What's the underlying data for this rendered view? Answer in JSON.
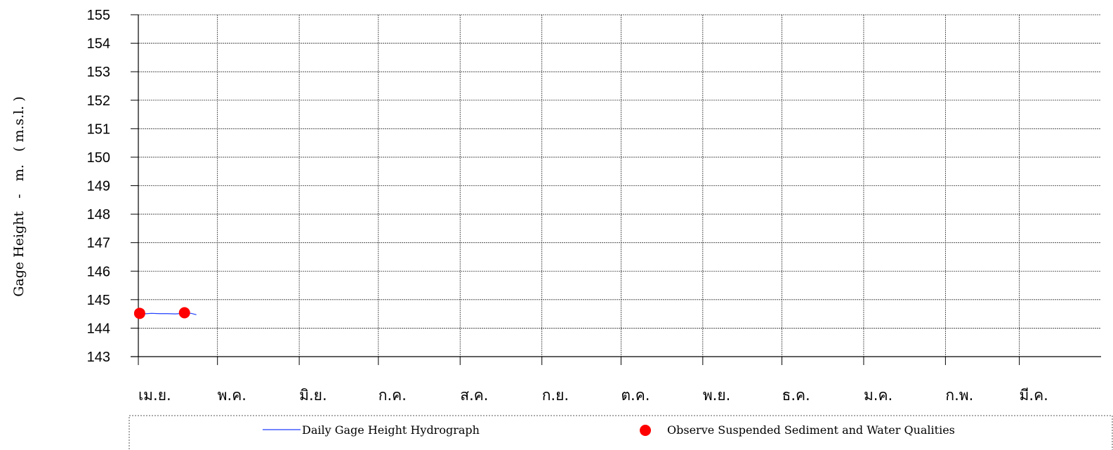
{
  "chart_data": {
    "type": "line",
    "title": "",
    "ylabel": "Gage Height   -   m.   ( m.s.l. )",
    "xlabel": "",
    "ylim": [
      143,
      155
    ],
    "yticks": [
      143,
      144,
      145,
      146,
      147,
      148,
      149,
      150,
      151,
      152,
      153,
      154,
      155
    ],
    "month_labels": [
      "เม.ย.",
      "พ.ค.",
      "มิ.ย.",
      "ก.ค.",
      "ส.ค.",
      "ก.ย.",
      "ต.ค.",
      "พ.ย.",
      "ธ.ค.",
      "ม.ค.",
      "ก.พ.",
      "มี.ค."
    ],
    "month_lengths": [
      30,
      31,
      30,
      31,
      31,
      30,
      31,
      30,
      31,
      31,
      28,
      31
    ],
    "grid": true,
    "legend_position": "bottom",
    "series": [
      {
        "name": "Daily Gage Height Hydrograph",
        "kind": "line",
        "color": "#1f3fff",
        "x_day": [
          1,
          3,
          6,
          9,
          12,
          15,
          18,
          21,
          23
        ],
        "y": [
          144.52,
          144.5,
          144.52,
          144.51,
          144.51,
          144.5,
          144.52,
          144.52,
          144.47
        ]
      },
      {
        "name": "Observe Suspended Sediment and Water Qualities",
        "kind": "scatter",
        "color": "#ff0000",
        "x_day": [
          1.5,
          18.5
        ],
        "y": [
          144.52,
          144.54
        ]
      }
    ]
  }
}
